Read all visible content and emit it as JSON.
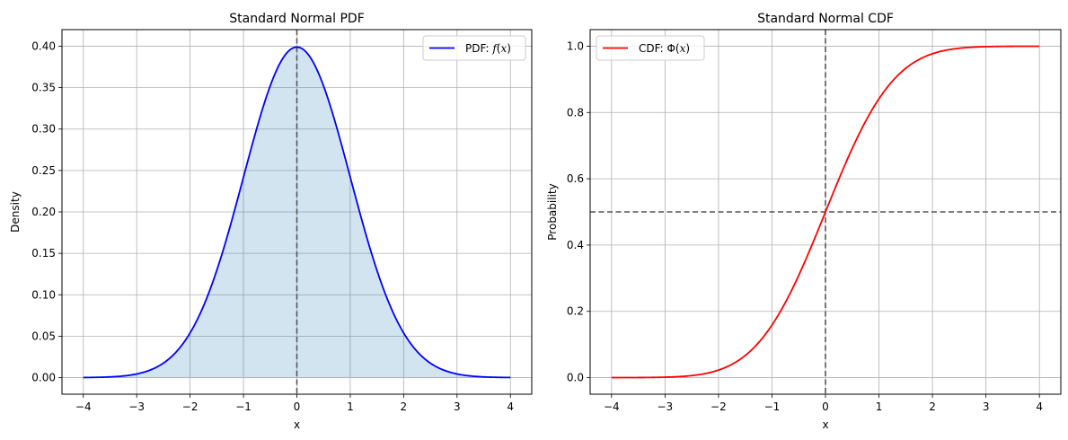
{
  "chart_data": [
    {
      "type": "line",
      "title": "Standard Normal PDF",
      "xlabel": "x",
      "ylabel": "Density",
      "xlim": [
        -4.4,
        4.4
      ],
      "ylim": [
        -0.02,
        0.42
      ],
      "xticks": [
        -4,
        -3,
        -2,
        -1,
        0,
        1,
        2,
        3,
        4
      ],
      "xtick_labels": [
        "−4",
        "−3",
        "−2",
        "−1",
        "0",
        "1",
        "2",
        "3",
        "4"
      ],
      "yticks": [
        0.0,
        0.05,
        0.1,
        0.15,
        0.2,
        0.25,
        0.3,
        0.35,
        0.4
      ],
      "ytick_labels": [
        "0.00",
        "0.05",
        "0.10",
        "0.15",
        "0.20",
        "0.25",
        "0.30",
        "0.35",
        "0.40"
      ],
      "grid": true,
      "legend_position": "upper-right",
      "series": [
        {
          "name": "PDF: f(x)",
          "name_parts": [
            "PDF: ",
            "f",
            "(",
            "x",
            ")"
          ],
          "color": "#0000ff",
          "x": [
            -4,
            -3.5,
            -3,
            -2.5,
            -2,
            -1.5,
            -1,
            -0.5,
            0,
            0.5,
            1,
            1.5,
            2,
            2.5,
            3,
            3.5,
            4
          ],
          "y": [
            0.0001,
            0.0009,
            0.0044,
            0.0175,
            0.054,
            0.1295,
            0.242,
            0.3521,
            0.3989,
            0.3521,
            0.242,
            0.1295,
            0.054,
            0.0175,
            0.0044,
            0.0009,
            0.0001
          ],
          "fill_below": true,
          "fill_color": "#1f77b4"
        }
      ],
      "reference_lines": [
        {
          "orientation": "vertical",
          "value": 0,
          "color": "#555555",
          "style": "dashed"
        }
      ]
    },
    {
      "type": "line",
      "title": "Standard Normal CDF",
      "xlabel": "x",
      "ylabel": "Probability",
      "xlim": [
        -4.4,
        4.4
      ],
      "ylim": [
        -0.05,
        1.05
      ],
      "xticks": [
        -4,
        -3,
        -2,
        -1,
        0,
        1,
        2,
        3,
        4
      ],
      "xtick_labels": [
        "−4",
        "−3",
        "−2",
        "−1",
        "0",
        "1",
        "2",
        "3",
        "4"
      ],
      "yticks": [
        0.0,
        0.2,
        0.4,
        0.6,
        0.8,
        1.0
      ],
      "ytick_labels": [
        "0.0",
        "0.2",
        "0.4",
        "0.6",
        "0.8",
        "1.0"
      ],
      "grid": true,
      "legend_position": "upper-left",
      "series": [
        {
          "name": "CDF: Φ(x)",
          "name_parts": [
            "CDF: Φ(",
            "x",
            ")"
          ],
          "color": "#ff0000",
          "x": [
            -4,
            -3.5,
            -3,
            -2.5,
            -2,
            -1.5,
            -1,
            -0.5,
            0,
            0.5,
            1,
            1.5,
            2,
            2.5,
            3,
            3.5,
            4
          ],
          "y": [
            3e-05,
            0.0002,
            0.0013,
            0.0062,
            0.0228,
            0.0668,
            0.1587,
            0.3085,
            0.5,
            0.6915,
            0.8413,
            0.9332,
            0.9772,
            0.9938,
            0.9987,
            0.9998,
            0.99997
          ],
          "fill_below": false
        }
      ],
      "reference_lines": [
        {
          "orientation": "vertical",
          "value": 0,
          "color": "#555555",
          "style": "dashed"
        },
        {
          "orientation": "horizontal",
          "value": 0.5,
          "color": "#555555",
          "style": "dashed"
        }
      ]
    }
  ]
}
